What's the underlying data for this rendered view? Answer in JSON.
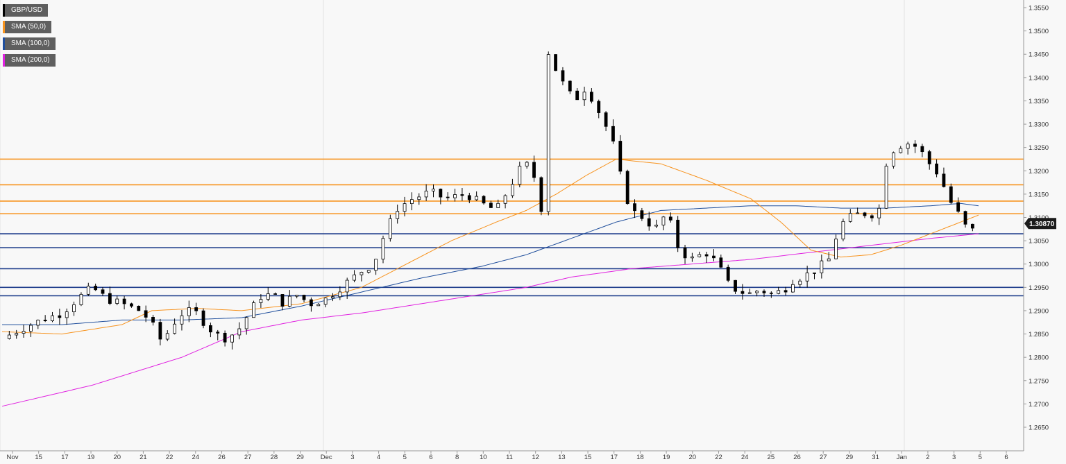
{
  "chart_data": {
    "type": "candlestick",
    "symbol": "GBP/USD",
    "ylim": [
      1.265,
      1.355
    ],
    "y_ticks": [
      "1.3550",
      "1.3500",
      "1.3450",
      "1.3400",
      "1.3350",
      "1.3300",
      "1.3250",
      "1.3200",
      "1.3150",
      "1.3100",
      "1.3050",
      "1.3000",
      "1.2950",
      "1.2900",
      "1.2850",
      "1.2800",
      "1.2750",
      "1.2700",
      "1.2650"
    ],
    "x_ticks": [
      "Nov",
      "15",
      "17",
      "19",
      "20",
      "21",
      "22",
      "24",
      "26",
      "27",
      "28",
      "29",
      "Dec",
      "3",
      "4",
      "5",
      "6",
      "8",
      "10",
      "11",
      "12",
      "13",
      "15",
      "17",
      "18",
      "19",
      "20",
      "22",
      "24",
      "25",
      "26",
      "27",
      "29",
      "31",
      "Jan",
      "2",
      "3",
      "5",
      "6"
    ],
    "last_price": "1.30870",
    "legend": [
      {
        "label": "GBP/USD",
        "color": "#000000"
      },
      {
        "label": "SMA (50,0)",
        "color": "#f7931e"
      },
      {
        "label": "SMA (100,0)",
        "color": "#1f4e9c"
      },
      {
        "label": "SMA (200,0)",
        "color": "#e020e0"
      }
    ],
    "resistance_levels": [
      1.3225,
      1.317,
      1.3135,
      1.3108
    ],
    "support_levels": [
      1.3065,
      1.3035,
      1.299,
      1.295,
      1.2932
    ],
    "resistance_color": "#f7931e",
    "support_color": "#1f3e8c",
    "close_path": [
      [
        0,
        1.284
      ],
      [
        12,
        1.286
      ],
      [
        26,
        1.288
      ],
      [
        40,
        1.2895
      ],
      [
        52,
        1.293
      ],
      [
        60,
        1.295
      ],
      [
        70,
        1.2925
      ],
      [
        80,
        1.2915
      ],
      [
        92,
        1.29
      ],
      [
        100,
        1.2875
      ],
      [
        104,
        1.2835
      ],
      [
        110,
        1.285
      ],
      [
        116,
        1.288
      ],
      [
        122,
        1.29
      ],
      [
        130,
        1.2895
      ],
      [
        136,
        1.287
      ],
      [
        142,
        1.285
      ],
      [
        150,
        1.284
      ],
      [
        158,
        1.286
      ],
      [
        164,
        1.289
      ],
      [
        172,
        1.293
      ],
      [
        180,
        1.2935
      ],
      [
        188,
        1.2915
      ],
      [
        196,
        1.2935
      ],
      [
        206,
        1.2915
      ],
      [
        216,
        1.2925
      ],
      [
        228,
        1.2955
      ],
      [
        240,
        1.2985
      ],
      [
        248,
        1.3
      ],
      [
        256,
        1.307
      ],
      [
        264,
        1.312
      ],
      [
        274,
        1.314
      ],
      [
        286,
        1.3155
      ],
      [
        296,
        1.314
      ],
      [
        310,
        1.315
      ],
      [
        320,
        1.313
      ],
      [
        330,
        1.3115
      ],
      [
        338,
        1.316
      ],
      [
        346,
        1.3205
      ],
      [
        352,
        1.3215
      ],
      [
        356,
        1.318
      ],
      [
        360,
        1.312
      ],
      [
        364,
        1.346
      ],
      [
        372,
        1.34
      ],
      [
        382,
        1.335
      ],
      [
        390,
        1.338
      ],
      [
        398,
        1.333
      ],
      [
        404,
        1.329
      ],
      [
        410,
        1.324
      ],
      [
        414,
        1.317
      ],
      [
        420,
        1.3115
      ],
      [
        428,
        1.31
      ],
      [
        436,
        1.3075
      ],
      [
        444,
        1.311
      ],
      [
        452,
        1.303
      ],
      [
        460,
        1.301
      ],
      [
        470,
        1.3025
      ],
      [
        478,
        1.3
      ],
      [
        484,
        1.296
      ],
      [
        490,
        1.2945
      ],
      [
        498,
        1.2935
      ],
      [
        506,
        1.2945
      ],
      [
        514,
        1.2935
      ],
      [
        522,
        1.2945
      ],
      [
        528,
        1.2965
      ],
      [
        536,
        1.2975
      ],
      [
        544,
        1.299
      ],
      [
        552,
        1.301
      ],
      [
        556,
        1.305
      ],
      [
        560,
        1.3085
      ],
      [
        566,
        1.31
      ],
      [
        574,
        1.311
      ],
      [
        580,
        1.3105
      ],
      [
        586,
        1.312
      ],
      [
        590,
        1.3215
      ],
      [
        596,
        1.325
      ],
      [
        604,
        1.326
      ],
      [
        612,
        1.325
      ],
      [
        618,
        1.322
      ],
      [
        626,
        1.319
      ],
      [
        632,
        1.314
      ],
      [
        640,
        1.31
      ],
      [
        646,
        1.3065
      ],
      [
        652,
        1.3087
      ]
    ],
    "sma50_path": [
      [
        0,
        1.2855
      ],
      [
        40,
        1.285
      ],
      [
        80,
        1.287
      ],
      [
        100,
        1.29
      ],
      [
        130,
        1.2905
      ],
      [
        160,
        1.29
      ],
      [
        200,
        1.2915
      ],
      [
        240,
        1.295
      ],
      [
        270,
        1.3
      ],
      [
        300,
        1.305
      ],
      [
        330,
        1.309
      ],
      [
        350,
        1.3115
      ],
      [
        370,
        1.315
      ],
      [
        390,
        1.319
      ],
      [
        410,
        1.3225
      ],
      [
        440,
        1.3215
      ],
      [
        470,
        1.318
      ],
      [
        500,
        1.314
      ],
      [
        520,
        1.309
      ],
      [
        540,
        1.303
      ],
      [
        560,
        1.3015
      ],
      [
        580,
        1.302
      ],
      [
        600,
        1.304
      ],
      [
        620,
        1.3065
      ],
      [
        640,
        1.309
      ],
      [
        652,
        1.3105
      ]
    ],
    "sma100_path": [
      [
        0,
        1.287
      ],
      [
        40,
        1.287
      ],
      [
        80,
        1.288
      ],
      [
        120,
        1.288
      ],
      [
        160,
        1.2885
      ],
      [
        200,
        1.291
      ],
      [
        240,
        1.294
      ],
      [
        280,
        1.297
      ],
      [
        320,
        1.2995
      ],
      [
        350,
        1.302
      ],
      [
        380,
        1.3055
      ],
      [
        410,
        1.309
      ],
      [
        440,
        1.3115
      ],
      [
        470,
        1.312
      ],
      [
        500,
        1.3125
      ],
      [
        530,
        1.3125
      ],
      [
        560,
        1.312
      ],
      [
        590,
        1.312
      ],
      [
        620,
        1.3125
      ],
      [
        640,
        1.313
      ],
      [
        652,
        1.3125
      ]
    ],
    "sma200_path": [
      [
        0,
        1.2695
      ],
      [
        60,
        1.274
      ],
      [
        120,
        1.28
      ],
      [
        160,
        1.2855
      ],
      [
        200,
        1.288
      ],
      [
        240,
        1.2895
      ],
      [
        280,
        1.2915
      ],
      [
        320,
        1.2935
      ],
      [
        350,
        1.295
      ],
      [
        380,
        1.2972
      ],
      [
        420,
        1.299
      ],
      [
        460,
        1.3
      ],
      [
        500,
        1.301
      ],
      [
        540,
        1.3025
      ],
      [
        580,
        1.304
      ],
      [
        620,
        1.3055
      ],
      [
        652,
        1.3065
      ]
    ]
  }
}
